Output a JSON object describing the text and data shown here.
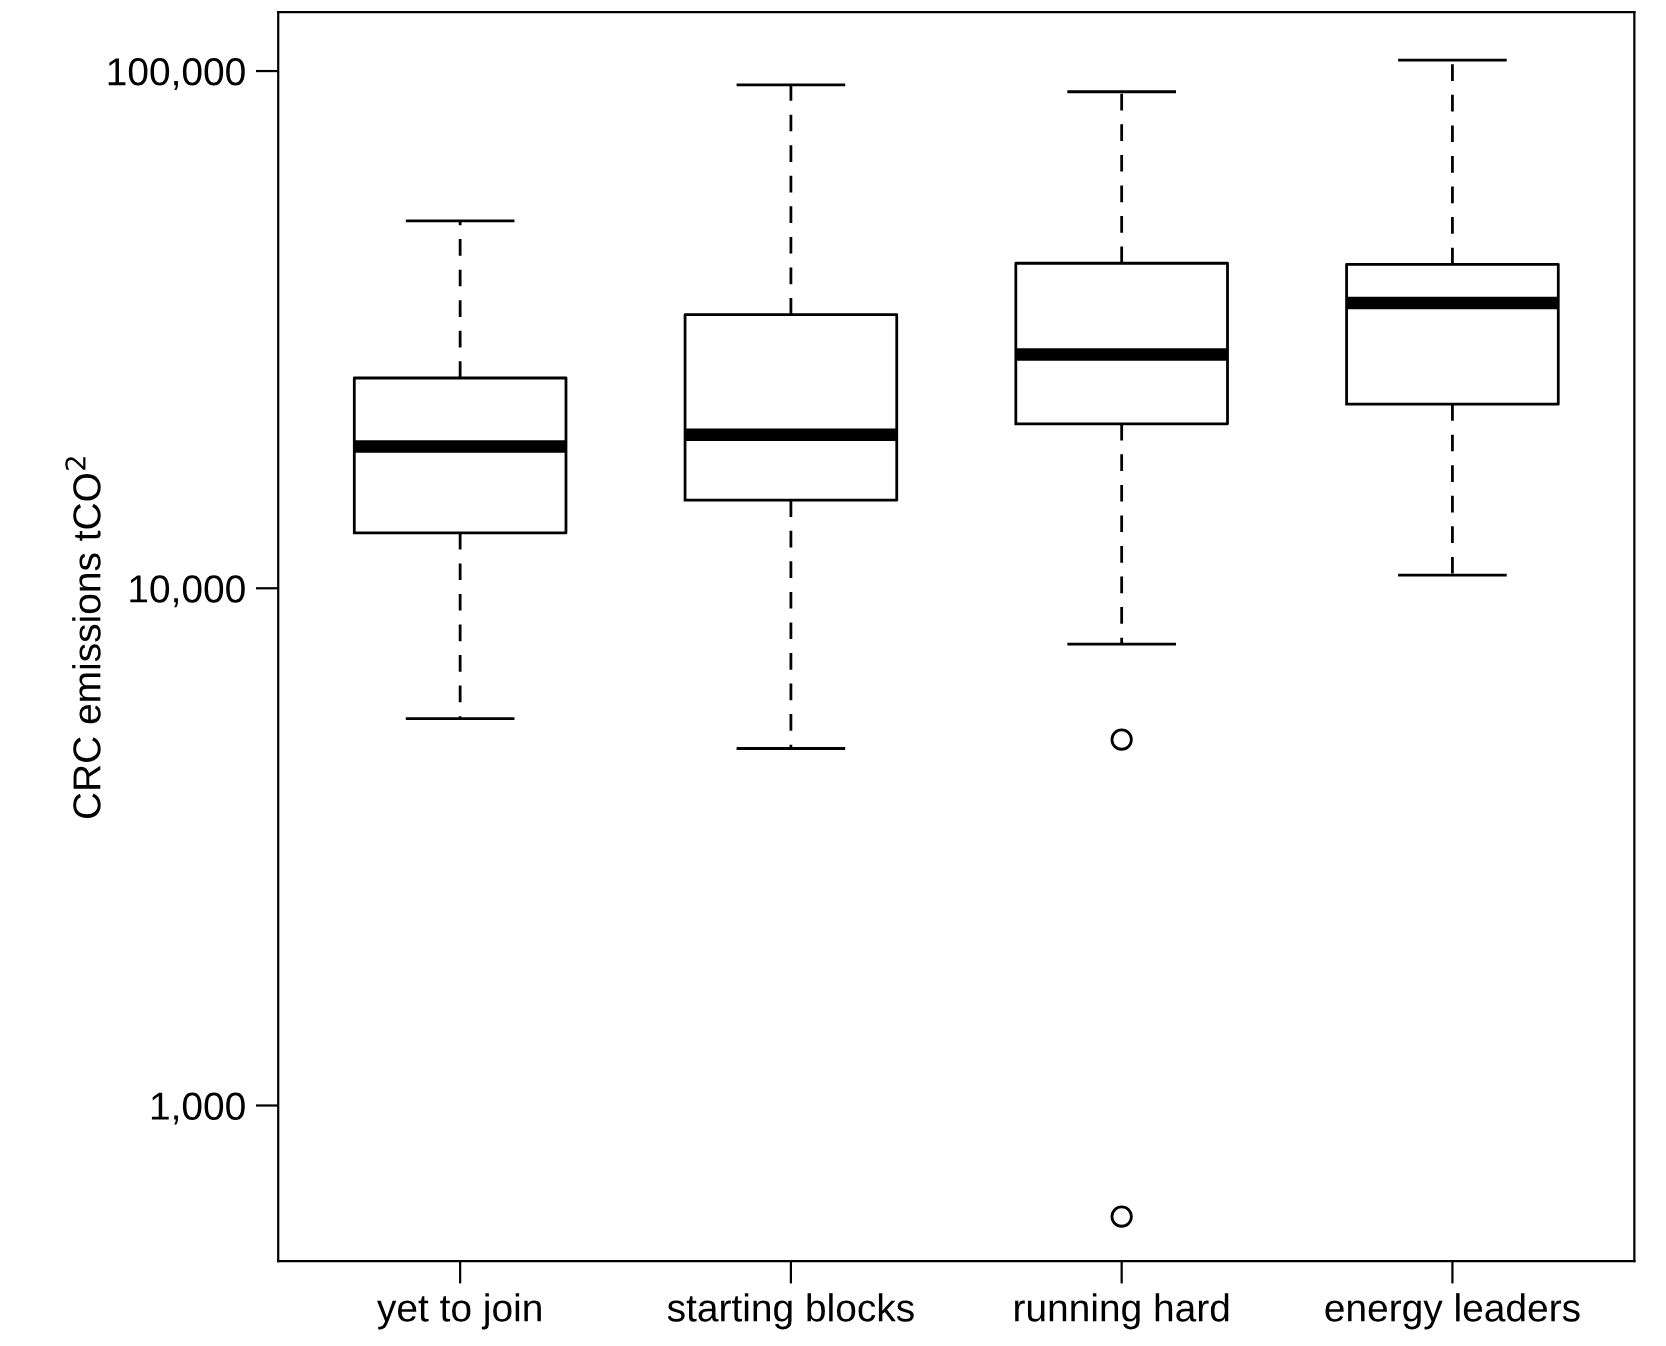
{
  "chart_data": {
    "type": "box",
    "ylabel": "CRC emissions tCO$^{2}$",
    "categories": [
      "yet to join",
      "starting blocks",
      "running hard",
      "energy leaders"
    ],
    "boxes": [
      {
        "low": 5600,
        "q1": 12800,
        "median": 18800,
        "q3": 25500,
        "high": 51300
      },
      {
        "low": 4900,
        "q1": 14800,
        "median": 19800,
        "q3": 33800,
        "high": 94000
      },
      {
        "low": 7800,
        "q1": 20800,
        "median": 28300,
        "q3": 42500,
        "high": 91200,
        "outliers": [
          5100,
          610
        ]
      },
      {
        "low": 10600,
        "q1": 22700,
        "median": 35600,
        "q3": 42300,
        "high": 105000
      }
    ],
    "log": true,
    "ylim": [
      500,
      130000
    ],
    "yticks": [
      {
        "value": 1000,
        "label": "1,000"
      },
      {
        "value": 10000,
        "label": "10,000"
      },
      {
        "value": 100000,
        "label": "100,000"
      }
    ],
    "grid": false,
    "line_style": "dashed"
  }
}
